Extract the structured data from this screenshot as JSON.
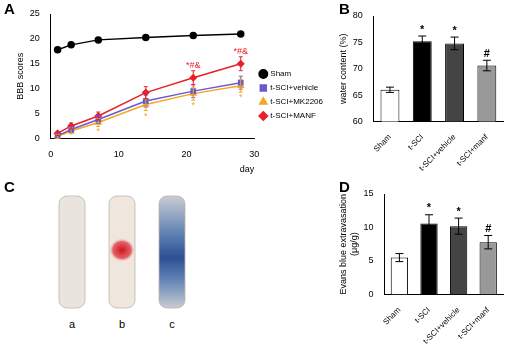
{
  "chart_data": [
    {
      "title": "A",
      "type": "line",
      "x_label": "day",
      "y_label": "BBB scores",
      "xlim": [
        0,
        30
      ],
      "xticks": [
        0,
        10,
        20,
        30
      ],
      "ylim": [
        0,
        25
      ],
      "yticks": [
        0,
        5,
        10,
        15,
        20,
        25
      ],
      "grid": false,
      "legend": "right",
      "x": [
        1,
        3,
        7,
        14,
        21,
        28
      ],
      "series": [
        {
          "name": "Sham",
          "color": "#000000",
          "marker": "circle",
          "values": [
            17.8,
            18.8,
            19.8,
            20.3,
            20.7,
            21.0
          ],
          "errors": [
            0.3,
            0.3,
            0.3,
            0.3,
            0.3,
            0.3
          ]
        },
        {
          "name": "t-SCI+vehicle",
          "color": "#6a5acd",
          "marker": "rect",
          "values": [
            0.5,
            1.8,
            3.8,
            7.5,
            9.5,
            11.2
          ],
          "errors": [
            0.4,
            0.6,
            0.8,
            1.2,
            1.3,
            1.3
          ]
        },
        {
          "name": "t-SCI+MK2206",
          "color": "#f5a623",
          "marker": "triangle",
          "values": [
            0.4,
            1.5,
            3.2,
            6.8,
            9.0,
            10.6
          ],
          "errors": [
            0.4,
            0.6,
            0.8,
            1.2,
            1.3,
            1.3
          ]
        },
        {
          "name": "t-SCI+MANF",
          "color": "#e8202a",
          "marker": "rectRot",
          "values": [
            1.0,
            2.5,
            4.5,
            9.2,
            12.2,
            15.0
          ],
          "errors": [
            0.4,
            0.6,
            0.8,
            1.2,
            1.4,
            1.4
          ]
        }
      ],
      "annotations": [
        {
          "series": "t-SCI+MK2206",
          "x": 7,
          "text": "*"
        },
        {
          "series": "t-SCI+MK2206",
          "x": 14,
          "text": "*"
        },
        {
          "series": "t-SCI+MK2206",
          "x": 21,
          "text": "*"
        },
        {
          "series": "t-SCI+MK2206",
          "x": 28,
          "text": "*"
        },
        {
          "series": "t-SCI+MANF",
          "x": 21,
          "text": "*#&"
        },
        {
          "series": "t-SCI+MANF",
          "x": 28,
          "text": "*#&"
        }
      ]
    },
    {
      "title": "B",
      "type": "bar",
      "y_label": "water content (%)",
      "categories": [
        "Sham",
        "t-SCI",
        "t-SCI+vehicle",
        "t-SCI+manf"
      ],
      "values": [
        66.0,
        75.2,
        74.8,
        70.6
      ],
      "errors": [
        0.5,
        1.0,
        1.2,
        1.0
      ],
      "colors": [
        "#ffffff",
        "#000000",
        "#444444",
        "#999999"
      ],
      "annotations": [
        null,
        "*",
        "*",
        "#"
      ],
      "ylim": [
        60,
        80
      ],
      "yticks": [
        60,
        65,
        70,
        75,
        80
      ],
      "grid": false
    },
    {
      "title": "D",
      "type": "bar",
      "y_label": [
        "Evans blue extravasation",
        "(μg/g)"
      ],
      "categories": [
        "Sham",
        "t-SCI",
        "t-SCI+vehicle",
        "t-SCI+manf"
      ],
      "values": [
        5.5,
        10.6,
        10.2,
        7.8
      ],
      "errors": [
        0.6,
        1.3,
        1.2,
        1.0
      ],
      "colors": [
        "#ffffff",
        "#000000",
        "#444444",
        "#999999"
      ],
      "annotations": [
        null,
        "*",
        "*",
        "#"
      ],
      "ylim": [
        0,
        15
      ],
      "yticks": [
        0,
        5,
        10,
        15
      ],
      "grid": false
    }
  ],
  "photo_panel": {
    "title": "C",
    "labels": [
      "a",
      "b",
      "c"
    ]
  }
}
